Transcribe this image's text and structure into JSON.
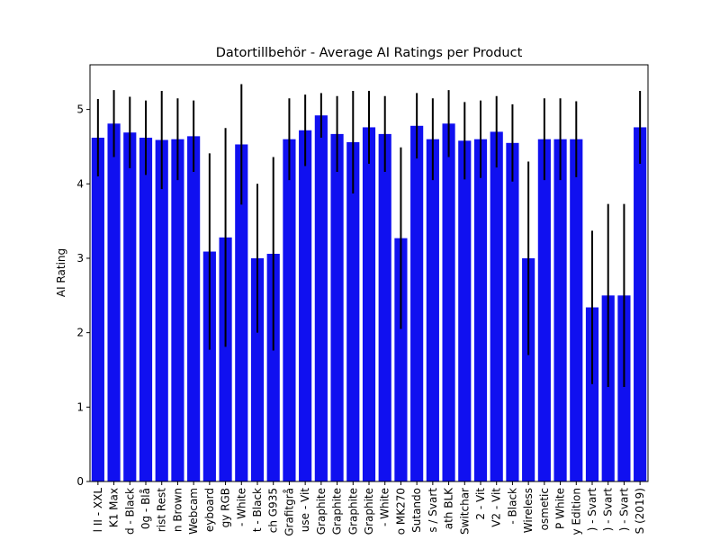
{
  "chart_data": {
    "type": "bar",
    "title": "Datortillbehör - Average AI Ratings per Product",
    "ylabel": "AI Rating",
    "categories": [
      "l II - XXL",
      "K1 Max",
      "d - Black",
      "0g - Blå",
      "rist Rest",
      "n Brown",
      "Webcam",
      "eyboard",
      "gy RGB",
      "- White",
      "t - Black",
      "ch G935",
      "Grafitgrå",
      "use - Vit",
      "Graphite",
      "Graphite",
      "Graphite",
      "Graphite",
      "- White",
      "o MK270",
      "Sutando",
      "s / Svart",
      "ath BLK",
      "Switchar",
      "2 - Vit",
      "V2 - Vit",
      "- Black",
      "Wireless",
      "osmetic",
      "P White",
      "y Edition",
      ") - Svart",
      ") - Svart",
      ") - Svart",
      "S (2019)"
    ],
    "values": [
      4.62,
      4.81,
      4.69,
      4.62,
      4.59,
      4.6,
      4.64,
      3.09,
      3.28,
      4.53,
      3.0,
      3.06,
      4.6,
      4.72,
      4.92,
      4.67,
      4.56,
      4.76,
      4.67,
      3.27,
      4.78,
      4.6,
      4.81,
      4.58,
      4.6,
      4.7,
      4.55,
      3.0,
      4.6,
      4.6,
      4.6,
      2.34,
      2.5,
      2.5,
      4.76
    ],
    "errors": [
      0.52,
      0.45,
      0.48,
      0.5,
      0.66,
      0.55,
      0.48,
      1.32,
      1.47,
      0.81,
      1.0,
      1.3,
      0.55,
      0.48,
      0.3,
      0.51,
      0.69,
      0.49,
      0.51,
      1.22,
      0.44,
      0.55,
      0.45,
      0.52,
      0.52,
      0.48,
      0.52,
      1.3,
      0.55,
      0.55,
      0.51,
      1.03,
      1.23,
      1.23,
      0.49
    ],
    "color": "#1010f0",
    "error_color": "#000000",
    "ylim": [
      0,
      5.6
    ],
    "yticks": [
      0,
      1,
      2,
      3,
      4,
      5
    ]
  }
}
